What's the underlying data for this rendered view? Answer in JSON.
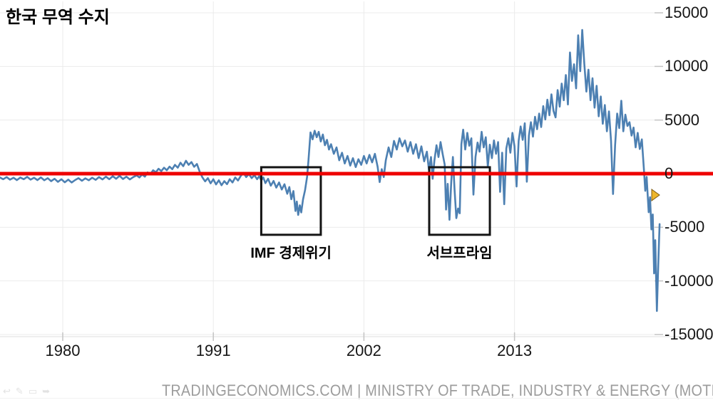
{
  "title": "한국 무역 수지",
  "footer": "TRADINGECONOMICS.COM | MINISTRY OF TRADE, INDUSTRY & ENERGY (MOTIE)",
  "colors": {
    "line": "#4d80b2",
    "zero_line": "#ee0000",
    "grid": "#ebebeb",
    "axis_line": "#dddddd",
    "tick": "#c4c4c4",
    "axis_text": "#161616",
    "annotation_box": "#141414",
    "footer_text": "#9c9c9c",
    "cursor_fill": "#edb62b",
    "cursor_stroke": "#7e5a10"
  },
  "footer_icons": [
    {
      "name": "undo-icon",
      "glyph": "↩"
    },
    {
      "name": "pencil-icon",
      "glyph": "✎"
    },
    {
      "name": "image-icon",
      "glyph": "▭"
    },
    {
      "name": "share-icon",
      "glyph": "➥"
    }
  ],
  "chart_data": {
    "type": "line",
    "title": "한국 무역 수지",
    "xlabel": "",
    "ylabel": "",
    "xlim": [
      1975.4,
      2023.8
    ],
    "ylim": [
      -15000,
      15000
    ],
    "x_ticks": [
      1980,
      1991,
      2002,
      2013
    ],
    "y_ticks": [
      15000,
      10000,
      5000,
      0,
      -5000,
      -10000,
      -15000
    ],
    "grid": true,
    "legend": false,
    "zero_line": {
      "value": 0,
      "color": "#ee0000"
    },
    "annotations": [
      {
        "label": "IMF 경제위기",
        "x_range": [
          1994.5,
          1998.85
        ],
        "y_range": [
          -5700,
          600
        ]
      },
      {
        "label": "서브프라임",
        "x_range": [
          2006.77,
          2011.2
        ],
        "y_range": [
          -5700,
          600
        ]
      }
    ],
    "series": [
      {
        "name": "한국 무역 수지",
        "points": [
          [
            1975.4,
            -350
          ],
          [
            1975.65,
            -520
          ],
          [
            1975.9,
            -320
          ],
          [
            1976.15,
            -560
          ],
          [
            1976.4,
            -380
          ],
          [
            1976.65,
            -600
          ],
          [
            1976.9,
            -360
          ],
          [
            1977.15,
            -520
          ],
          [
            1977.4,
            -300
          ],
          [
            1977.65,
            -560
          ],
          [
            1977.9,
            -380
          ],
          [
            1978.15,
            -600
          ],
          [
            1978.4,
            -350
          ],
          [
            1978.65,
            -620
          ],
          [
            1978.9,
            -420
          ],
          [
            1979.15,
            -700
          ],
          [
            1979.4,
            -480
          ],
          [
            1979.65,
            -760
          ],
          [
            1979.9,
            -520
          ],
          [
            1980.15,
            -800
          ],
          [
            1980.4,
            -560
          ],
          [
            1980.65,
            -820
          ],
          [
            1980.9,
            -600
          ],
          [
            1981.15,
            -420
          ],
          [
            1981.4,
            -660
          ],
          [
            1981.65,
            -440
          ],
          [
            1981.9,
            -620
          ],
          [
            1982.15,
            -380
          ],
          [
            1982.4,
            -580
          ],
          [
            1982.65,
            -320
          ],
          [
            1982.9,
            -540
          ],
          [
            1983.15,
            -280
          ],
          [
            1983.4,
            -520
          ],
          [
            1983.65,
            -240
          ],
          [
            1983.9,
            -480
          ],
          [
            1984.15,
            -200
          ],
          [
            1984.4,
            -500
          ],
          [
            1984.65,
            -280
          ],
          [
            1984.9,
            -540
          ],
          [
            1985.15,
            -320
          ],
          [
            1985.4,
            -160
          ],
          [
            1985.6,
            -360
          ],
          [
            1985.8,
            -80
          ],
          [
            1986.0,
            -280
          ],
          [
            1986.2,
            120
          ],
          [
            1986.4,
            -60
          ],
          [
            1986.6,
            320
          ],
          [
            1986.8,
            140
          ],
          [
            1987.0,
            460
          ],
          [
            1987.2,
            240
          ],
          [
            1987.4,
            560
          ],
          [
            1987.6,
            320
          ],
          [
            1987.8,
            660
          ],
          [
            1988.0,
            420
          ],
          [
            1988.2,
            820
          ],
          [
            1988.4,
            560
          ],
          [
            1988.6,
            1020
          ],
          [
            1988.8,
            700
          ],
          [
            1989.0,
            1200
          ],
          [
            1989.2,
            820
          ],
          [
            1989.4,
            1080
          ],
          [
            1989.6,
            640
          ],
          [
            1989.8,
            900
          ],
          [
            1990.0,
            200
          ],
          [
            1990.2,
            -340
          ],
          [
            1990.4,
            -720
          ],
          [
            1990.6,
            -420
          ],
          [
            1990.8,
            -900
          ],
          [
            1991.0,
            -520
          ],
          [
            1991.2,
            -1000
          ],
          [
            1991.4,
            -620
          ],
          [
            1991.6,
            -1080
          ],
          [
            1991.8,
            -700
          ],
          [
            1992.0,
            -980
          ],
          [
            1992.2,
            -520
          ],
          [
            1992.4,
            -820
          ],
          [
            1992.6,
            -360
          ],
          [
            1992.8,
            -640
          ],
          [
            1993.0,
            -220
          ],
          [
            1993.2,
            80
          ],
          [
            1993.4,
            -320
          ],
          [
            1993.6,
            -40
          ],
          [
            1993.8,
            -420
          ],
          [
            1994.0,
            -140
          ],
          [
            1994.2,
            -520
          ],
          [
            1994.35,
            -240
          ],
          [
            1994.5,
            -620
          ],
          [
            1994.65,
            -350
          ],
          [
            1994.8,
            -880
          ],
          [
            1995.0,
            -480
          ],
          [
            1995.2,
            -1120
          ],
          [
            1995.4,
            -680
          ],
          [
            1995.6,
            -1300
          ],
          [
            1995.8,
            -820
          ],
          [
            1996.0,
            -1480
          ],
          [
            1996.2,
            -980
          ],
          [
            1996.4,
            -1880
          ],
          [
            1996.55,
            -1250
          ],
          [
            1996.7,
            -2380
          ],
          [
            1996.85,
            -1620
          ],
          [
            1997.0,
            -3480
          ],
          [
            1997.1,
            -2600
          ],
          [
            1997.2,
            -3850
          ],
          [
            1997.32,
            -2950
          ],
          [
            1997.42,
            -3620
          ],
          [
            1997.55,
            -2400
          ],
          [
            1997.7,
            -1550
          ],
          [
            1997.85,
            -300
          ],
          [
            1997.95,
            1200
          ],
          [
            1998.1,
            3850
          ],
          [
            1998.25,
            3200
          ],
          [
            1998.4,
            4000
          ],
          [
            1998.55,
            3400
          ],
          [
            1998.7,
            3900
          ],
          [
            1998.85,
            3000
          ],
          [
            1999.0,
            3650
          ],
          [
            1999.15,
            2650
          ],
          [
            1999.3,
            3150
          ],
          [
            1999.45,
            2250
          ],
          [
            1999.6,
            2750
          ],
          [
            1999.8,
            1850
          ],
          [
            2000.0,
            2450
          ],
          [
            2000.2,
            1250
          ],
          [
            2000.4,
            1950
          ],
          [
            2000.6,
            950
          ],
          [
            2000.8,
            1650
          ],
          [
            2001.0,
            750
          ],
          [
            2001.2,
            1450
          ],
          [
            2001.4,
            620
          ],
          [
            2001.6,
            1350
          ],
          [
            2001.8,
            820
          ],
          [
            2002.0,
            1650
          ],
          [
            2002.2,
            950
          ],
          [
            2002.4,
            1750
          ],
          [
            2002.6,
            1050
          ],
          [
            2002.8,
            1850
          ],
          [
            2003.0,
            650
          ],
          [
            2003.15,
            -780
          ],
          [
            2003.3,
            420
          ],
          [
            2003.45,
            -320
          ],
          [
            2003.6,
            1250
          ],
          [
            2003.8,
            2450
          ],
          [
            2004.0,
            1550
          ],
          [
            2004.2,
            3050
          ],
          [
            2004.4,
            2250
          ],
          [
            2004.6,
            3300
          ],
          [
            2004.8,
            2550
          ],
          [
            2005.0,
            3100
          ],
          [
            2005.2,
            2050
          ],
          [
            2005.4,
            2950
          ],
          [
            2005.6,
            1850
          ],
          [
            2005.8,
            2750
          ],
          [
            2006.0,
            1450
          ],
          [
            2006.2,
            2550
          ],
          [
            2006.4,
            1150
          ],
          [
            2006.6,
            2050
          ],
          [
            2006.75,
            350
          ],
          [
            2006.9,
            1550
          ],
          [
            2007.02,
            -480
          ],
          [
            2007.15,
            1250
          ],
          [
            2007.3,
            2650
          ],
          [
            2007.45,
            1550
          ],
          [
            2007.6,
            2950
          ],
          [
            2007.75,
            1850
          ],
          [
            2007.9,
            850
          ],
          [
            2008.0,
            -3350
          ],
          [
            2008.12,
            -950
          ],
          [
            2008.25,
            -4300
          ],
          [
            2008.38,
            -750
          ],
          [
            2008.5,
            1550
          ],
          [
            2008.62,
            -1450
          ],
          [
            2008.75,
            -4150
          ],
          [
            2008.88,
            -3250
          ],
          [
            2009.0,
            -3700
          ],
          [
            2009.12,
            2750
          ],
          [
            2009.25,
            4100
          ],
          [
            2009.4,
            2250
          ],
          [
            2009.55,
            3800
          ],
          [
            2009.7,
            2600
          ],
          [
            2009.85,
            3300
          ],
          [
            2010.0,
            -1950
          ],
          [
            2010.15,
            1550
          ],
          [
            2010.3,
            2900
          ],
          [
            2010.45,
            2050
          ],
          [
            2010.6,
            3900
          ],
          [
            2010.75,
            2450
          ],
          [
            2010.9,
            3400
          ],
          [
            2011.05,
            650
          ],
          [
            2011.2,
            2700
          ],
          [
            2011.35,
            1450
          ],
          [
            2011.5,
            3100
          ],
          [
            2011.65,
            1850
          ],
          [
            2011.8,
            2950
          ],
          [
            2011.95,
            -1700
          ],
          [
            2012.1,
            1950
          ],
          [
            2012.25,
            -2850
          ],
          [
            2012.4,
            2350
          ],
          [
            2012.55,
            3300
          ],
          [
            2012.7,
            1950
          ],
          [
            2012.85,
            3800
          ],
          [
            2013.0,
            2550
          ],
          [
            2013.15,
            -1200
          ],
          [
            2013.3,
            3050
          ],
          [
            2013.45,
            4400
          ],
          [
            2013.6,
            3150
          ],
          [
            2013.75,
            4700
          ],
          [
            2013.9,
            -750
          ],
          [
            2014.05,
            3550
          ],
          [
            2014.2,
            4800
          ],
          [
            2014.35,
            3450
          ],
          [
            2014.5,
            5300
          ],
          [
            2014.65,
            4150
          ],
          [
            2014.8,
            5600
          ],
          [
            2014.95,
            4350
          ],
          [
            2015.1,
            6300
          ],
          [
            2015.25,
            5050
          ],
          [
            2015.4,
            6900
          ],
          [
            2015.55,
            5450
          ],
          [
            2015.7,
            7400
          ],
          [
            2015.85,
            5850
          ],
          [
            2016.0,
            5250
          ],
          [
            2016.15,
            7800
          ],
          [
            2016.3,
            6250
          ],
          [
            2016.45,
            8400
          ],
          [
            2016.6,
            6850
          ],
          [
            2016.75,
            9200
          ],
          [
            2016.9,
            6450
          ],
          [
            2017.05,
            11300
          ],
          [
            2017.2,
            8650
          ],
          [
            2017.35,
            10200
          ],
          [
            2017.5,
            7950
          ],
          [
            2017.65,
            12900
          ],
          [
            2017.8,
            9550
          ],
          [
            2017.95,
            13400
          ],
          [
            2018.1,
            10250
          ],
          [
            2018.25,
            7650
          ],
          [
            2018.4,
            9700
          ],
          [
            2018.55,
            6850
          ],
          [
            2018.7,
            8900
          ],
          [
            2018.85,
            6150
          ],
          [
            2019.0,
            8200
          ],
          [
            2019.15,
            5350
          ],
          [
            2019.3,
            7200
          ],
          [
            2019.45,
            4650
          ],
          [
            2019.6,
            6400
          ],
          [
            2019.75,
            3950
          ],
          [
            2019.9,
            5800
          ],
          [
            2020.05,
            3050
          ],
          [
            2020.2,
            -1900
          ],
          [
            2020.35,
            2650
          ],
          [
            2020.5,
            5600
          ],
          [
            2020.65,
            4250
          ],
          [
            2020.8,
            6800
          ],
          [
            2020.95,
            3950
          ],
          [
            2021.1,
            5500
          ],
          [
            2021.25,
            4450
          ],
          [
            2021.4,
            4800
          ],
          [
            2021.55,
            3550
          ],
          [
            2021.7,
            4300
          ],
          [
            2021.85,
            2450
          ],
          [
            2022.0,
            3800
          ],
          [
            2022.15,
            2300
          ],
          [
            2022.3,
            3200
          ],
          [
            2022.45,
            500
          ],
          [
            2022.55,
            -1600
          ],
          [
            2022.65,
            -300
          ],
          [
            2022.8,
            -3600
          ],
          [
            2022.9,
            -2200
          ],
          [
            2023.0,
            -5200
          ],
          [
            2023.1,
            -3800
          ],
          [
            2023.2,
            -9300
          ],
          [
            2023.28,
            -6200
          ],
          [
            2023.4,
            -12800
          ],
          [
            2023.5,
            -8500
          ],
          [
            2023.6,
            -4700
          ]
        ]
      }
    ]
  }
}
